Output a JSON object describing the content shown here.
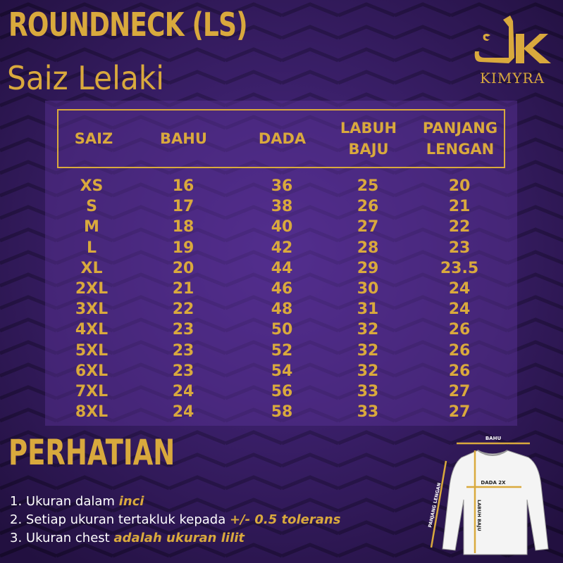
{
  "title": "ROUNDNECK (LS)",
  "subtitle": "Saiz Lelaki",
  "logo": {
    "text": "KIMYRA"
  },
  "colors": {
    "accent": "#d9a93d",
    "background": "#3a1d66"
  },
  "table": {
    "headers": [
      "SAIZ",
      "BAHU",
      "DADA",
      "LABUH\nBAJU",
      "PANJANG\nLENGAN"
    ],
    "rows": [
      [
        "XS",
        "16",
        "36",
        "25",
        "20"
      ],
      [
        "S",
        "17",
        "38",
        "26",
        "21"
      ],
      [
        "M",
        "18",
        "40",
        "27",
        "22"
      ],
      [
        "L",
        "19",
        "42",
        "28",
        "23"
      ],
      [
        "XL",
        "20",
        "44",
        "29",
        "23.5"
      ],
      [
        "2XL",
        "21",
        "46",
        "30",
        "24"
      ],
      [
        "3XL",
        "22",
        "48",
        "31",
        "24"
      ],
      [
        "4XL",
        "23",
        "50",
        "32",
        "26"
      ],
      [
        "5XL",
        "23",
        "52",
        "32",
        "26"
      ],
      [
        "6XL",
        "23",
        "54",
        "32",
        "26"
      ],
      [
        "7XL",
        "24",
        "56",
        "33",
        "27"
      ],
      [
        "8XL",
        "24",
        "58",
        "33",
        "27"
      ]
    ]
  },
  "notes": {
    "heading": "PERHATIAN",
    "items": [
      {
        "text": "1. Ukuran dalam ",
        "emphasis": "inci"
      },
      {
        "text": "2. Setiap ukuran tertakluk kepada ",
        "emphasis": "+/- 0.5 tolerans"
      },
      {
        "text": "3. Ukuran chest ",
        "emphasis": "adalah ukuran lilit"
      }
    ]
  },
  "diagram": {
    "bahu": "BAHU",
    "dada": "DADA 2X",
    "labuh": "LABUH BAJU",
    "lengan": "PANJANG LENGAN"
  }
}
